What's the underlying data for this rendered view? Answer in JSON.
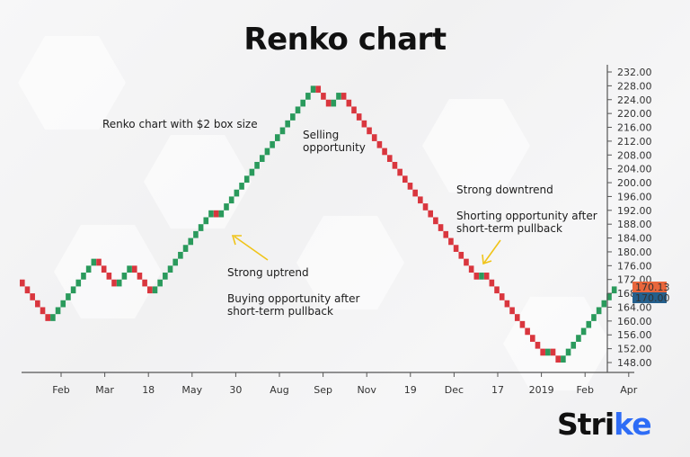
{
  "title": "Renko chart",
  "annotations": {
    "box_size": "Renko chart with $2 box size",
    "selling": [
      "Selling",
      "opportunity"
    ],
    "uptrend": "Strong uptrend",
    "buying": [
      "Buying opportunity after",
      "short-term pullback"
    ],
    "downtrend": "Strong downtrend",
    "shorting": [
      "Shorting opportunity after",
      "short-term pullback"
    ]
  },
  "price_tags": {
    "last": {
      "label": "170.13",
      "color": "#e8663c"
    },
    "current": {
      "label": "170.00",
      "color": "#245f8c"
    }
  },
  "logo": {
    "prefix": "Stri",
    "accent": "k",
    "suffix": "e",
    "accent_color": "#2e6cf6"
  },
  "colors": {
    "up": "#2a9a5c",
    "down": "#d9363e",
    "arrow": "#f0c419"
  },
  "chart_data": {
    "type": "renko",
    "title": "Renko chart",
    "subtitle": "Renko chart with $2 box size",
    "box_size": 2,
    "xlabel": "",
    "ylabel": "",
    "ylim": [
      148,
      232
    ],
    "y_ticks": [
      232,
      228,
      224,
      220,
      216,
      212,
      208,
      204,
      200,
      196,
      192,
      188,
      184,
      180,
      176,
      172,
      168,
      164,
      160,
      156,
      152,
      148
    ],
    "x_ticks": [
      "Feb",
      "Mar",
      "18",
      "May",
      "30",
      "Aug",
      "Sep",
      "Nov",
      "19",
      "Dec",
      "17",
      "2019",
      "Feb",
      "Apr"
    ],
    "grid": false,
    "last_price": 170.13,
    "current_price": 170.0,
    "bricks": [
      {
        "dir": "down",
        "count": 6,
        "from": 172,
        "to": 160
      },
      {
        "dir": "up",
        "count": 9,
        "from": 160,
        "to": 178
      },
      {
        "dir": "down",
        "count": 4,
        "from": 178,
        "to": 170
      },
      {
        "dir": "up",
        "count": 3,
        "from": 170,
        "to": 176
      },
      {
        "dir": "down",
        "count": 4,
        "from": 176,
        "to": 168
      },
      {
        "dir": "up",
        "count": 12,
        "from": 168,
        "to": 192
      },
      {
        "dir": "down",
        "count": 1,
        "from": 192,
        "to": 190
      },
      {
        "dir": "up",
        "count": 19,
        "from": 190,
        "to": 228
      },
      {
        "dir": "down",
        "count": 3,
        "from": 228,
        "to": 222
      },
      {
        "dir": "up",
        "count": 2,
        "from": 222,
        "to": 226
      },
      {
        "dir": "down",
        "count": 27,
        "from": 226,
        "to": 172
      },
      {
        "dir": "up",
        "count": 1,
        "from": 172,
        "to": 174
      },
      {
        "dir": "down",
        "count": 12,
        "from": 174,
        "to": 150
      },
      {
        "dir": "up",
        "count": 1,
        "from": 150,
        "to": 152
      },
      {
        "dir": "down",
        "count": 2,
        "from": 152,
        "to": 148
      },
      {
        "dir": "up",
        "count": 11,
        "from": 148,
        "to": 170
      }
    ]
  }
}
